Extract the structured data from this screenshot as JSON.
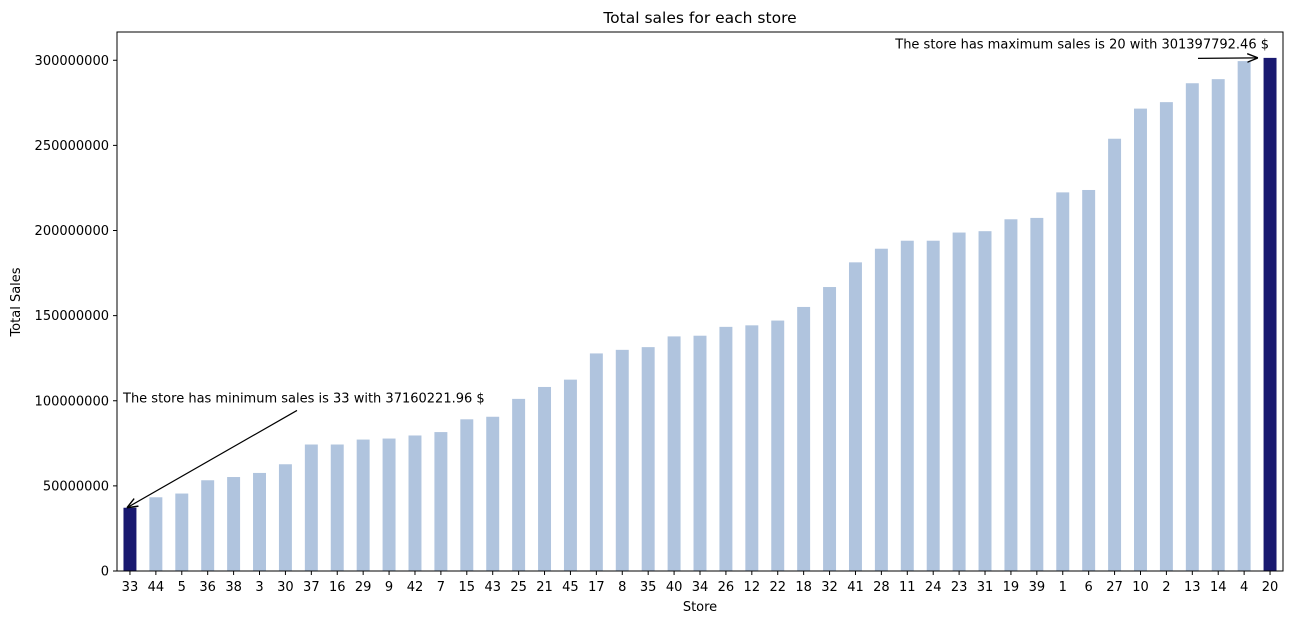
{
  "chart_data": {
    "type": "bar",
    "title": "Total sales for each store",
    "xlabel": "Store",
    "ylabel": "Total Sales",
    "ylim": [
      0,
      316600000
    ],
    "yticks": [
      0,
      50000000,
      100000000,
      150000000,
      200000000,
      250000000,
      300000000
    ],
    "ytick_labels": [
      "0",
      "50000000",
      "100000000",
      "150000000",
      "200000000",
      "250000000",
      "300000000"
    ],
    "categories": [
      "33",
      "44",
      "5",
      "36",
      "38",
      "3",
      "30",
      "37",
      "16",
      "29",
      "9",
      "42",
      "7",
      "15",
      "43",
      "25",
      "21",
      "45",
      "17",
      "8",
      "35",
      "40",
      "34",
      "26",
      "12",
      "22",
      "18",
      "32",
      "41",
      "28",
      "11",
      "24",
      "23",
      "31",
      "19",
      "39",
      "1",
      "6",
      "27",
      "10",
      "2",
      "13",
      "14",
      "4",
      "20"
    ],
    "values": [
      37160221.96,
      43300000,
      45500000,
      53300000,
      55200000,
      57600000,
      62700000,
      74300000,
      74300000,
      77200000,
      77800000,
      79600000,
      81600000,
      89100000,
      90600000,
      101100000,
      108100000,
      112400000,
      127800000,
      129900000,
      131500000,
      137800000,
      138200000,
      143400000,
      144300000,
      147100000,
      155100000,
      166800000,
      181300000,
      189300000,
      194000000,
      194000000,
      198800000,
      199600000,
      206600000,
      207400000,
      222400000,
      223800000,
      253900000,
      271600000,
      275400000,
      286500000,
      288900000,
      299500000,
      301397792.46
    ],
    "colors": {
      "default": "#b0c4de",
      "highlight": "#191970"
    },
    "highlighted": [
      "33",
      "20"
    ],
    "annotations": [
      {
        "text": "The store has minimum sales is 33 with 37160221.96 $",
        "target_category": "33",
        "target_value": 37160221.96,
        "text_value": 99000000
      },
      {
        "text": "The store has maximum sales is 20 with 301397792.46 $",
        "target_category": "20",
        "target_value": 301397792.46,
        "text_value": 307000000
      }
    ]
  }
}
